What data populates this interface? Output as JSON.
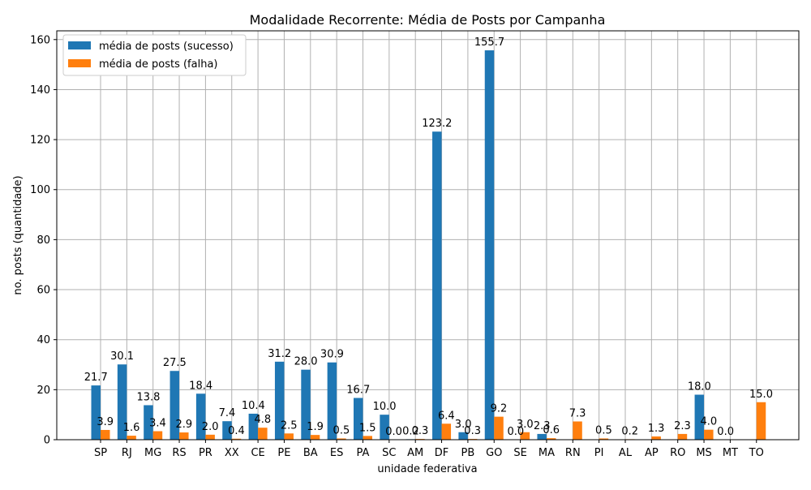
{
  "chart_data": {
    "type": "bar",
    "title": "Modalidade Recorrente: Média de Posts por Campanha",
    "xlabel": "unidade federativa",
    "ylabel": "no. posts (quantidade)",
    "ylim": [
      0,
      163.5
    ],
    "yticks": [
      0,
      20,
      40,
      60,
      80,
      100,
      120,
      140,
      160
    ],
    "grid": true,
    "legend_position": "top-left",
    "categories": [
      "SP",
      "RJ",
      "MG",
      "RS",
      "PR",
      "XX",
      "CE",
      "PE",
      "BA",
      "ES",
      "PA",
      "SC",
      "AM",
      "DF",
      "PB",
      "GO",
      "SE",
      "MA",
      "RN",
      "PI",
      "AL",
      "AP",
      "RO",
      "MS",
      "MT",
      "TO"
    ],
    "series": [
      {
        "name": "média de posts (sucesso)",
        "color": "#1f77b4",
        "values": [
          21.7,
          30.1,
          13.8,
          27.5,
          18.4,
          7.4,
          10.4,
          31.2,
          28.0,
          30.9,
          16.7,
          10.0,
          0.2,
          123.2,
          3.0,
          155.7,
          0.0,
          2.3,
          null,
          null,
          null,
          null,
          null,
          18.0,
          0.0,
          null
        ],
        "labels": [
          "21.7",
          "30.1",
          "13.8",
          "27.5",
          "18.4",
          "7.4",
          "10.4",
          "31.2",
          "28.0",
          "30.9",
          "16.7",
          "10.0",
          "0.2",
          "123.2",
          "3.0",
          "155.7",
          "0.0",
          "2.3",
          null,
          null,
          null,
          null,
          null,
          "18.0",
          "0.0",
          null
        ]
      },
      {
        "name": "média de posts (falha)",
        "color": "#ff7f0e",
        "values": [
          3.9,
          1.6,
          3.4,
          2.9,
          2.0,
          0.4,
          4.8,
          2.5,
          1.9,
          0.5,
          1.5,
          0.0,
          0.3,
          6.4,
          0.3,
          9.2,
          3.0,
          0.6,
          7.3,
          0.5,
          0.2,
          1.3,
          2.3,
          4.0,
          null,
          15.0
        ],
        "labels": [
          "3.9",
          "1.6",
          "3.4",
          "2.9",
          "2.0",
          "0.4",
          "4.8",
          "2.5",
          "1.9",
          "0.5",
          "1.5",
          "0.0",
          "0.3",
          "6.4",
          "0.3",
          "9.2",
          "3.0",
          "0.6",
          "7.3",
          "0.5",
          "0.2",
          "1.3",
          "2.3",
          "4.0",
          null,
          "15.0"
        ]
      }
    ]
  }
}
